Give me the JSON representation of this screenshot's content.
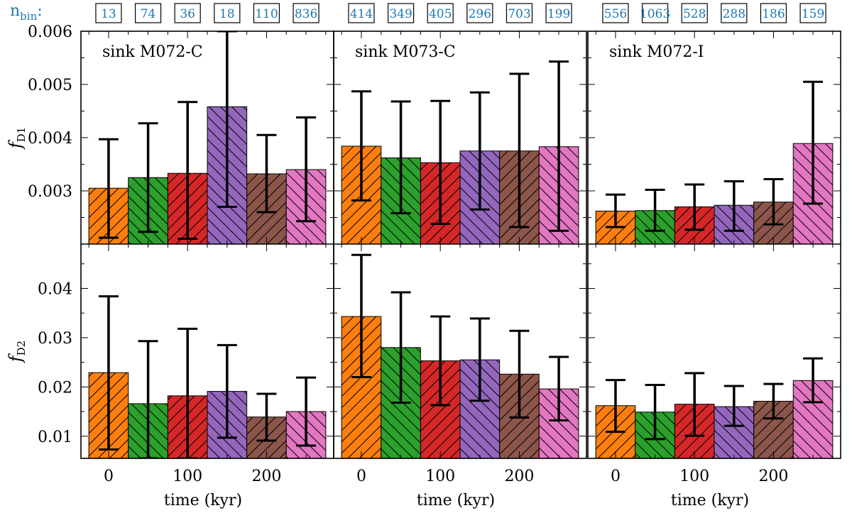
{
  "nbin_label": "n",
  "nbin_sub": "bin",
  "nbin_colon": ":",
  "chart_data": {
    "type": "bar",
    "layout": "2 rows x 3 columns, shared axes",
    "xlabel": "time (kyr)",
    "x_ticks": [
      "0",
      "100",
      "200"
    ],
    "xlim": [
      -35,
      285
    ],
    "categories": [
      0,
      50,
      100,
      150,
      200,
      250
    ],
    "bar_width": 50,
    "colors": [
      "#ff7f0e",
      "#2ca02c",
      "#d62728",
      "#9467bd",
      "#8c564b",
      "#e377c2"
    ],
    "hatch": [
      "/",
      "\\",
      "/",
      "\\",
      "/",
      "\\"
    ],
    "rows": [
      {
        "ylabel_main": "f",
        "ylabel_sub": "D1",
        "ylim": [
          0.002,
          0.006
        ],
        "ticks": [
          0.003,
          0.004,
          0.005,
          0.006
        ],
        "tick_labels": [
          "0.003",
          "0.004",
          "0.005",
          "0.006"
        ]
      },
      {
        "ylabel_main": "f",
        "ylabel_sub": "D2",
        "ylim": [
          0.0055,
          0.049
        ],
        "ticks": [
          0.01,
          0.02,
          0.03,
          0.04
        ],
        "tick_labels": [
          "0.01",
          "0.02",
          "0.03",
          "0.04"
        ]
      }
    ],
    "panels": [
      {
        "title": "sink M072-C",
        "nbin": [
          "13",
          "74",
          "36",
          "18",
          "110",
          "836"
        ],
        "fD1": {
          "values": [
            0.00305,
            0.00325,
            0.00333,
            0.00458,
            0.00332,
            0.0034
          ],
          "err_low": [
            0.00212,
            0.00223,
            0.0021,
            0.0027,
            0.0026,
            0.00243
          ],
          "err_high": [
            0.00397,
            0.00427,
            0.00467,
            0.006,
            0.00405,
            0.00438
          ]
        },
        "fD2": {
          "values": [
            0.0229,
            0.0166,
            0.0182,
            0.0191,
            0.0139,
            0.015
          ],
          "err_low": [
            0.0073,
            0.0055,
            0.0055,
            0.0097,
            0.0091,
            0.0081
          ],
          "err_high": [
            0.0384,
            0.0293,
            0.0318,
            0.0285,
            0.0186,
            0.0219
          ]
        }
      },
      {
        "title": "sink M073-C",
        "nbin": [
          "414",
          "349",
          "405",
          "296",
          "703",
          "199"
        ],
        "fD1": {
          "values": [
            0.00384,
            0.00362,
            0.00353,
            0.00375,
            0.00375,
            0.00383
          ],
          "err_low": [
            0.00282,
            0.00258,
            0.00238,
            0.00265,
            0.00232,
            0.00225
          ],
          "err_high": [
            0.00487,
            0.00468,
            0.00469,
            0.00485,
            0.0052,
            0.00543
          ]
        },
        "fD2": {
          "values": [
            0.0343,
            0.028,
            0.0253,
            0.0255,
            0.0226,
            0.0196
          ],
          "err_low": [
            0.022,
            0.0168,
            0.0163,
            0.0172,
            0.0138,
            0.0132
          ],
          "err_high": [
            0.0468,
            0.0392,
            0.0343,
            0.0339,
            0.0314,
            0.0261
          ]
        }
      },
      {
        "title": "sink M072-I",
        "nbin": [
          "556",
          "1063",
          "528",
          "288",
          "186",
          "159"
        ],
        "fD1": {
          "values": [
            0.00262,
            0.00263,
            0.0027,
            0.00273,
            0.00279,
            0.00389
          ],
          "err_low": [
            0.00232,
            0.00225,
            0.00227,
            0.00225,
            0.00237,
            0.00276
          ],
          "err_high": [
            0.00293,
            0.00302,
            0.00312,
            0.00318,
            0.00322,
            0.00505
          ]
        },
        "fD2": {
          "values": [
            0.0162,
            0.0149,
            0.0165,
            0.016,
            0.0171,
            0.0213
          ],
          "err_low": [
            0.0109,
            0.0094,
            0.0101,
            0.0121,
            0.0136,
            0.0169
          ],
          "err_high": [
            0.0214,
            0.0204,
            0.0228,
            0.0202,
            0.0206,
            0.0258
          ]
        }
      }
    ]
  }
}
